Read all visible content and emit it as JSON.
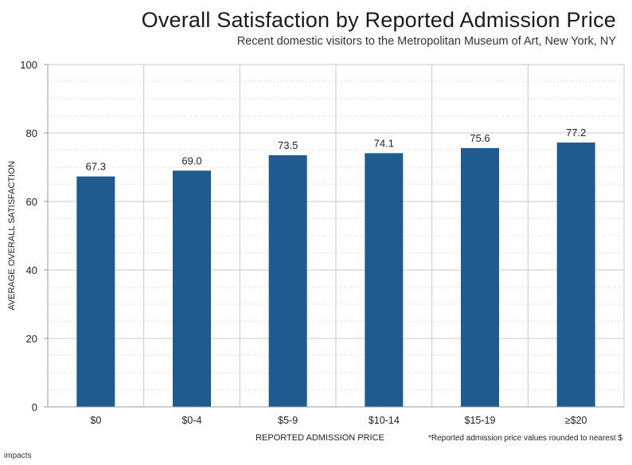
{
  "header": {
    "title": "Overall Satisfaction by Reported Admission Price",
    "subtitle": "Recent domestic visitors to the Metropolitan Museum of Art, New York, NY"
  },
  "footnote": "*Reported admission price values rounded to nearest $",
  "logo": {
    "mark": "i",
    "text": "mpacts",
    "icon": "impacts-logo-icon"
  },
  "colors": {
    "bar": "#1f5b8e",
    "grid_major": "#c8c8c8",
    "grid_minor": "#e6e6e6",
    "axis": "#9a9a9a"
  },
  "chart_data": {
    "type": "bar",
    "title": "Overall Satisfaction by Reported Admission Price",
    "subtitle": "Recent domestic visitors to the Metropolitan Museum of Art, New York, NY",
    "xlabel": "REPORTED ADMISSION PRICE",
    "ylabel": "AVERAGE OVERALL SATISFACTION",
    "categories": [
      "$0",
      "$0-4",
      "$5-9",
      "$10-14",
      "$15-19",
      "≥$20"
    ],
    "values": [
      67.3,
      69.0,
      73.5,
      74.1,
      75.6,
      77.2
    ],
    "value_labels": [
      "67.3",
      "69.0",
      "73.5",
      "74.1",
      "75.6",
      "77.2"
    ],
    "ylim": [
      0,
      100
    ],
    "yticks": [
      0,
      20,
      40,
      60,
      80,
      100
    ],
    "grid": true,
    "legend": "none"
  }
}
